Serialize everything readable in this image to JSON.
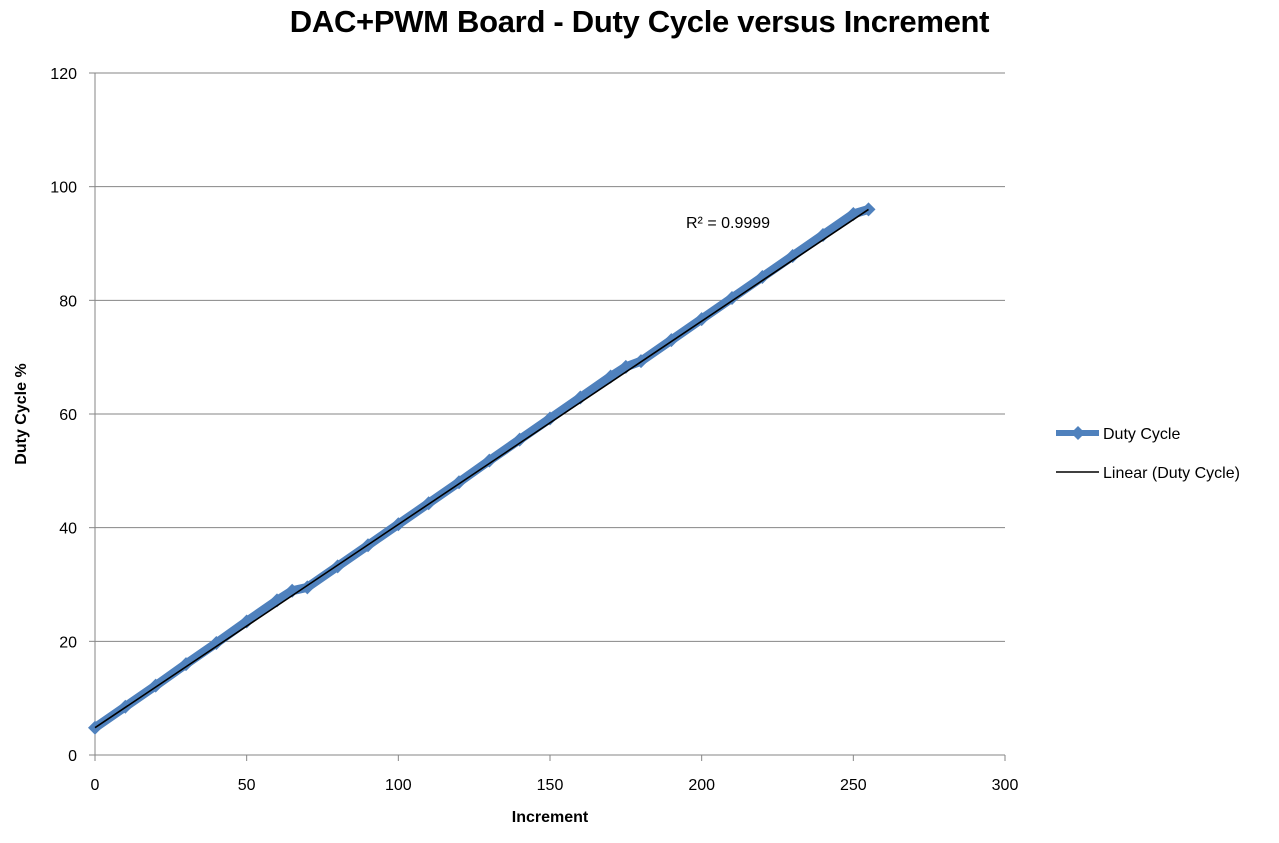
{
  "chart_data": {
    "type": "line",
    "title": "DAC+PWM Board - Duty Cycle versus Increment",
    "xlabel": "Increment",
    "ylabel": "Duty Cycle %",
    "xlim": [
      0,
      300
    ],
    "ylim": [
      0,
      120
    ],
    "xticks": [
      0,
      50,
      100,
      150,
      200,
      250,
      300
    ],
    "yticks": [
      0,
      20,
      40,
      60,
      80,
      100,
      120
    ],
    "grid": "horizontal",
    "legend_position": "right",
    "series": [
      {
        "name": "Duty Cycle",
        "color": "#4f81bd",
        "marker": "diamond",
        "x": [
          0,
          10,
          20,
          30,
          40,
          50,
          60,
          65,
          70,
          80,
          90,
          100,
          110,
          120,
          130,
          140,
          150,
          160,
          170,
          175,
          180,
          190,
          200,
          210,
          220,
          230,
          240,
          250,
          255
        ],
        "y": [
          4.8,
          8.5,
          12.2,
          16.0,
          19.7,
          23.5,
          27.2,
          28.9,
          29.5,
          33.2,
          36.9,
          40.6,
          44.3,
          48.0,
          51.8,
          55.5,
          59.2,
          62.9,
          66.6,
          68.3,
          69.3,
          73.0,
          76.7,
          80.4,
          84.1,
          87.8,
          91.5,
          95.2,
          96.0
        ]
      },
      {
        "name": "Linear (Duty Cycle)",
        "color": "#000000",
        "type": "trendline",
        "x": [
          0,
          255
        ],
        "y": [
          4.8,
          96.0
        ]
      }
    ],
    "annotations": [
      {
        "text": "R² = 0.9999"
      }
    ]
  }
}
